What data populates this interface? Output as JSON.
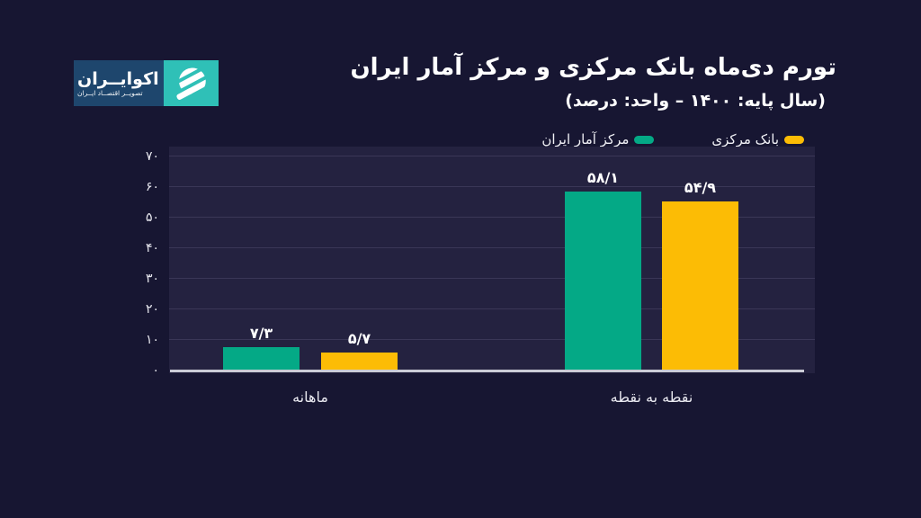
{
  "logo": {
    "name": "اکوایــران",
    "tagline": "تصویــر اقتصــاد ایــران",
    "navy_color": "#1e466d",
    "teal_color": "#2fc0b7"
  },
  "chart_data": {
    "type": "bar",
    "rtl": true,
    "title": "تورم دی‌ماه بانک مرکزی و مرکز آمار ایران",
    "subtitle": "(سال پایه: ۱۴۰۰ – واحد: درصد)",
    "categories": [
      "ماهانه",
      "نقطه به نقطه"
    ],
    "series": [
      {
        "name": "مرکز آمار ایران",
        "color": "#04a986",
        "values": [
          7.3,
          58.1
        ],
        "value_labels": [
          "۷/۳",
          "۵۸/۱"
        ]
      },
      {
        "name": "بانک مرکزی",
        "color": "#fcbc05",
        "values": [
          5.7,
          54.9
        ],
        "value_labels": [
          "۵/۷",
          "۵۴/۹"
        ]
      }
    ],
    "ylim": [
      0,
      70
    ],
    "y_ticks": [
      {
        "value": 0,
        "label": "۰"
      },
      {
        "value": 10,
        "label": "۱۰"
      },
      {
        "value": 20,
        "label": "۲۰"
      },
      {
        "value": 30,
        "label": "۳۰"
      },
      {
        "value": 40,
        "label": "۴۰"
      },
      {
        "value": 50,
        "label": "۵۰"
      },
      {
        "value": 60,
        "label": "۶۰"
      },
      {
        "value": 70,
        "label": "۷۰"
      }
    ],
    "grid": true,
    "legend": {
      "position": "top-right",
      "items": [
        {
          "label": "بانک مرکزی",
          "color": "#fcbc05"
        },
        {
          "label": "مرکز آمار ایران",
          "color": "#04a986"
        }
      ]
    }
  }
}
